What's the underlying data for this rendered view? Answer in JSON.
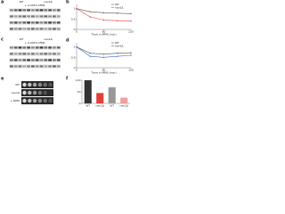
{
  "figure": {
    "a": {
      "letter": "a",
      "left": "WT",
      "right": "nav1Δ",
      "treatment": "+ 0.005% MMS"
    },
    "b": {
      "letter": "b",
      "type": "line",
      "xlabel": "Time in MMS (min)",
      "x": [
        0,
        30,
        60,
        90,
        120
      ],
      "xlim": [
        0,
        120
      ],
      "xticks": [
        0,
        60,
        120
      ],
      "ylim": [
        0,
        1.2
      ],
      "yticks": [
        0,
        0.5,
        1
      ],
      "series": [
        {
          "name": "WT",
          "color": "#555555",
          "values": [
            1,
            0.85,
            0.8,
            0.78,
            0.76
          ]
        },
        {
          "name": "nav1Δ",
          "color": "#e0403a",
          "values": [
            1,
            0.6,
            0.45,
            0.42,
            0.4
          ]
        }
      ]
    },
    "c": {
      "letter": "c",
      "left": "WT",
      "right": "nav1Δ",
      "treatment": "+ 0.005% MMS"
    },
    "d": {
      "letter": "d",
      "type": "line",
      "xlabel": "Time in MMS (min)",
      "x": [
        0,
        30,
        60,
        90,
        120
      ],
      "xlim": [
        0,
        120
      ],
      "xticks": [
        0,
        60,
        120
      ],
      "ylim": [
        0,
        1.2
      ],
      "yticks": [
        0,
        0.5,
        1
      ],
      "series": [
        {
          "name": "WT",
          "color": "#555555",
          "values": [
            1,
            0.7,
            0.65,
            0.7,
            0.72
          ]
        },
        {
          "name": "nav1Δ",
          "color": "#3a6fd0",
          "values": [
            1,
            0.55,
            0.5,
            0.55,
            0.6
          ]
        }
      ]
    },
    "e": {
      "letter": "e",
      "rows": [
        "WT",
        "nav1Δ",
        "+ MMS"
      ]
    },
    "f": {
      "letter": "f",
      "type": "bar",
      "categories": [
        "WT",
        "nav1Δ",
        "WT",
        "nav1Δ"
      ],
      "values": [
        100,
        45,
        70,
        25
      ],
      "colors": [
        "#333333",
        "#e0403a",
        "#999999",
        "#f0a0a0"
      ],
      "ylim": [
        0,
        100
      ],
      "yticks": [
        0,
        50,
        100
      ]
    }
  }
}
